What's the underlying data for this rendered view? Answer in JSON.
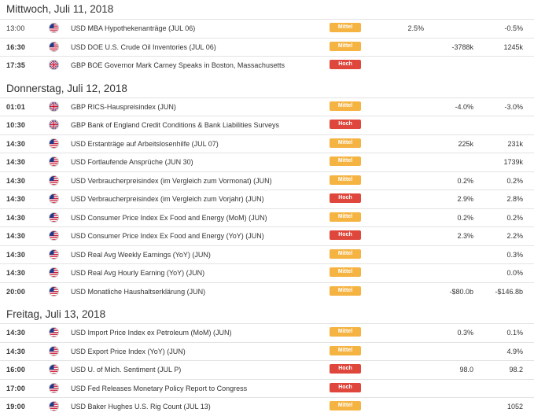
{
  "colors": {
    "mittel": "#f5b342",
    "hoch": "#e0473c"
  },
  "days": [
    {
      "title": "Mittwoch, Juli 11, 2018",
      "events": [
        {
          "time": "13:00",
          "bold": false,
          "country": "us",
          "flag_icon": "us-flag-icon",
          "event": "USD MBA Hypothekenanträge (JUL 06)",
          "impact": "Mittel",
          "actual": "2.5%",
          "forecast": "",
          "previous": "-0.5%"
        },
        {
          "time": "16:30",
          "bold": true,
          "country": "us",
          "flag_icon": "us-flag-icon",
          "event": "USD DOE U.S. Crude Oil Inventories (JUL 06)",
          "impact": "Mittel",
          "actual": "",
          "forecast": "-3788k",
          "previous": "1245k"
        },
        {
          "time": "17:35",
          "bold": true,
          "country": "gb",
          "flag_icon": "uk-flag-icon",
          "event": "GBP BOE Governor Mark Carney Speaks in Boston, Massachusetts",
          "impact": "Hoch",
          "actual": "",
          "forecast": "",
          "previous": ""
        }
      ]
    },
    {
      "title": "Donnerstag, Juli 12, 2018",
      "events": [
        {
          "time": "01:01",
          "bold": true,
          "country": "gb",
          "flag_icon": "uk-flag-icon",
          "event": "GBP RICS-Hauspreisindex (JUN)",
          "impact": "Mittel",
          "actual": "",
          "forecast": "-4.0%",
          "previous": "-3.0%"
        },
        {
          "time": "10:30",
          "bold": true,
          "country": "gb",
          "flag_icon": "uk-flag-icon",
          "event": "GBP Bank of England Credit Conditions & Bank Liabilities Surveys",
          "impact": "Hoch",
          "actual": "",
          "forecast": "",
          "previous": ""
        },
        {
          "time": "14:30",
          "bold": true,
          "country": "us",
          "flag_icon": "us-flag-icon",
          "event": "USD Erstanträge auf Arbeitslosenhilfe (JUL 07)",
          "impact": "Mittel",
          "actual": "",
          "forecast": "225k",
          "previous": "231k"
        },
        {
          "time": "14:30",
          "bold": true,
          "country": "us",
          "flag_icon": "us-flag-icon",
          "event": "USD Fortlaufende Ansprüche (JUN 30)",
          "impact": "Mittel",
          "actual": "",
          "forecast": "",
          "previous": "1739k"
        },
        {
          "time": "14:30",
          "bold": true,
          "country": "us",
          "flag_icon": "us-flag-icon",
          "event": "USD Verbraucherpreisindex (im Vergleich zum Vormonat) (JUN)",
          "impact": "Mittel",
          "actual": "",
          "forecast": "0.2%",
          "previous": "0.2%"
        },
        {
          "time": "14:30",
          "bold": true,
          "country": "us",
          "flag_icon": "us-flag-icon",
          "event": "USD Verbraucherpreisindex (im Vergleich zum Vorjahr) (JUN)",
          "impact": "Hoch",
          "actual": "",
          "forecast": "2.9%",
          "previous": "2.8%"
        },
        {
          "time": "14:30",
          "bold": true,
          "country": "us",
          "flag_icon": "us-flag-icon",
          "event": "USD Consumer Price Index Ex Food and Energy (MoM) (JUN)",
          "impact": "Mittel",
          "actual": "",
          "forecast": "0.2%",
          "previous": "0.2%"
        },
        {
          "time": "14:30",
          "bold": true,
          "country": "us",
          "flag_icon": "us-flag-icon",
          "event": "USD Consumer Price Index Ex Food and Energy (YoY) (JUN)",
          "impact": "Hoch",
          "actual": "",
          "forecast": "2.3%",
          "previous": "2.2%"
        },
        {
          "time": "14:30",
          "bold": true,
          "country": "us",
          "flag_icon": "us-flag-icon",
          "event": "USD Real Avg Weekly Earnings (YoY) (JUN)",
          "impact": "Mittel",
          "actual": "",
          "forecast": "",
          "previous": "0.3%"
        },
        {
          "time": "14:30",
          "bold": true,
          "country": "us",
          "flag_icon": "us-flag-icon",
          "event": "USD Real Avg Hourly Earning (YoY) (JUN)",
          "impact": "Mittel",
          "actual": "",
          "forecast": "",
          "previous": "0.0%"
        },
        {
          "time": "20:00",
          "bold": true,
          "country": "us",
          "flag_icon": "us-flag-icon",
          "event": "USD Monatliche Haushaltserklärung (JUN)",
          "impact": "Mittel",
          "actual": "",
          "forecast": "-$80.0b",
          "previous": "-$146.8b"
        }
      ]
    },
    {
      "title": "Freitag, Juli 13, 2018",
      "events": [
        {
          "time": "14:30",
          "bold": true,
          "country": "us",
          "flag_icon": "us-flag-icon",
          "event": "USD Import Price Index ex Petroleum (MoM) (JUN)",
          "impact": "Mittel",
          "actual": "",
          "forecast": "0.3%",
          "previous": "0.1%"
        },
        {
          "time": "14:30",
          "bold": true,
          "country": "us",
          "flag_icon": "us-flag-icon",
          "event": "USD Export Price Index (YoY) (JUN)",
          "impact": "Mittel",
          "actual": "",
          "forecast": "",
          "previous": "4.9%"
        },
        {
          "time": "16:00",
          "bold": true,
          "country": "us",
          "flag_icon": "us-flag-icon",
          "event": "USD U. of Mich. Sentiment (JUL P)",
          "impact": "Hoch",
          "actual": "",
          "forecast": "98.0",
          "previous": "98.2"
        },
        {
          "time": "17:00",
          "bold": true,
          "country": "us",
          "flag_icon": "us-flag-icon",
          "event": "USD Fed Releases Monetary Policy Report to Congress",
          "impact": "Hoch",
          "actual": "",
          "forecast": "",
          "previous": ""
        },
        {
          "time": "19:00",
          "bold": true,
          "country": "us",
          "flag_icon": "us-flag-icon",
          "event": "USD Baker Hughes U.S. Rig Count (JUL 13)",
          "impact": "Mittel",
          "actual": "",
          "forecast": "",
          "previous": "1052"
        }
      ]
    }
  ]
}
